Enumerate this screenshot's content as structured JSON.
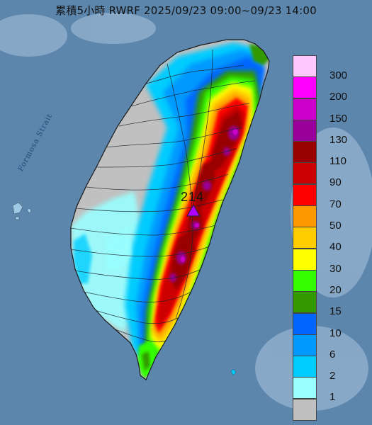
{
  "title": "累積5小時 RWRF 2025/09/23 09:00~09/23 14:00",
  "map_labels": {
    "strait": "Formosa Strait",
    "max_value": "214"
  },
  "colors": {
    "sea": "#5d86ad",
    "land_outside": "#c9d6e2",
    "max_marker": "#b000ff"
  },
  "legend": {
    "classes": [
      {
        "label": "300",
        "color": "#ffc8ff"
      },
      {
        "label": "200",
        "color": "#ff00ff"
      },
      {
        "label": "150",
        "color": "#cc00cc"
      },
      {
        "label": "130",
        "color": "#99009a"
      },
      {
        "label": "110",
        "color": "#990000"
      },
      {
        "label": "90",
        "color": "#cc0000"
      },
      {
        "label": "70",
        "color": "#ff0000"
      },
      {
        "label": "50",
        "color": "#ff9900"
      },
      {
        "label": "40",
        "color": "#ffcc00"
      },
      {
        "label": "30",
        "color": "#ffff00"
      },
      {
        "label": "20",
        "color": "#33ff00"
      },
      {
        "label": "15",
        "color": "#339900"
      },
      {
        "label": "10",
        "color": "#0066ff"
      },
      {
        "label": "6",
        "color": "#0099ff"
      },
      {
        "label": "2",
        "color": "#00ccff"
      },
      {
        "label": "1",
        "color": "#99ffff"
      },
      {
        "label": "",
        "color": "#c0c0c0"
      }
    ]
  }
}
